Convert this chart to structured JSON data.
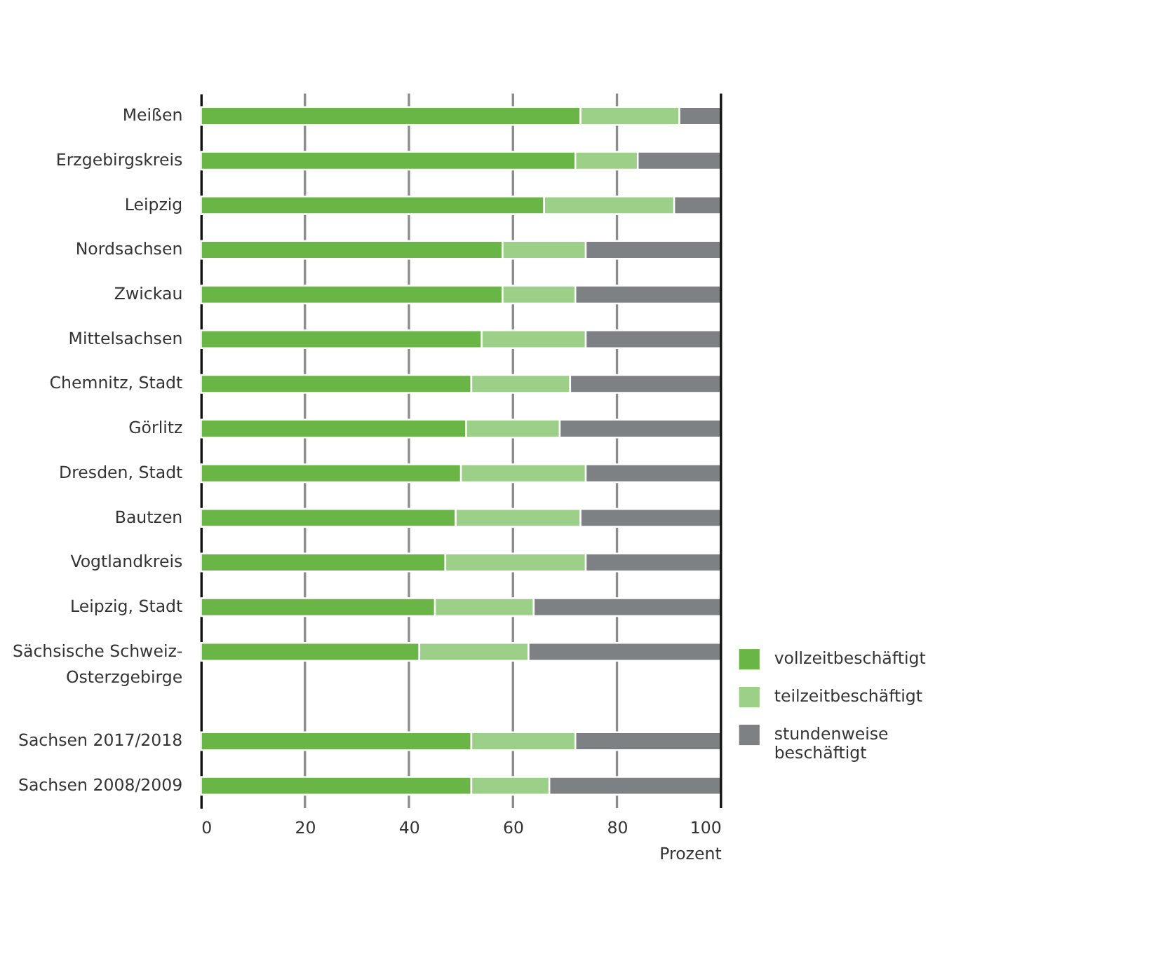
{
  "chart_data": {
    "type": "bar",
    "orientation": "horizontal",
    "stacked": true,
    "categories": [
      "Meißen",
      "Erzgebirgskreis",
      "Leipzig",
      "Nordsachsen",
      "Zwickau",
      "Mittelsachsen",
      "Chemnitz, Stadt",
      "Görlitz",
      "Dresden, Stadt",
      "Bautzen",
      "Vogtlandkreis",
      "Leipzig, Stadt",
      "Sächsische Schweiz-Osterzgebirge",
      null,
      "Sachsen 2017/2018",
      "Sachsen 2008/2009"
    ],
    "series": [
      {
        "name": "vollzeitbeschäftigt",
        "color": "#69b545",
        "values": [
          73,
          72,
          66,
          58,
          58,
          54,
          52,
          51,
          50,
          49,
          47,
          45,
          42,
          null,
          52,
          52
        ]
      },
      {
        "name": "teilzeitbeschäftigt",
        "color": "#9ccf88",
        "values": [
          19,
          12,
          25,
          16,
          14,
          20,
          19,
          18,
          24,
          24,
          27,
          19,
          21,
          null,
          20,
          15
        ]
      },
      {
        "name": "stundenweise beschäftigt",
        "color": "#7e8184",
        "values": [
          8,
          16,
          9,
          26,
          28,
          26,
          29,
          31,
          26,
          27,
          26,
          36,
          37,
          null,
          28,
          33
        ]
      }
    ],
    "xlim": [
      0,
      100
    ],
    "xticks": [
      0,
      20,
      40,
      60,
      80,
      100
    ],
    "xlabel": "Prozent",
    "grid": "x",
    "legend": "bottom right"
  }
}
